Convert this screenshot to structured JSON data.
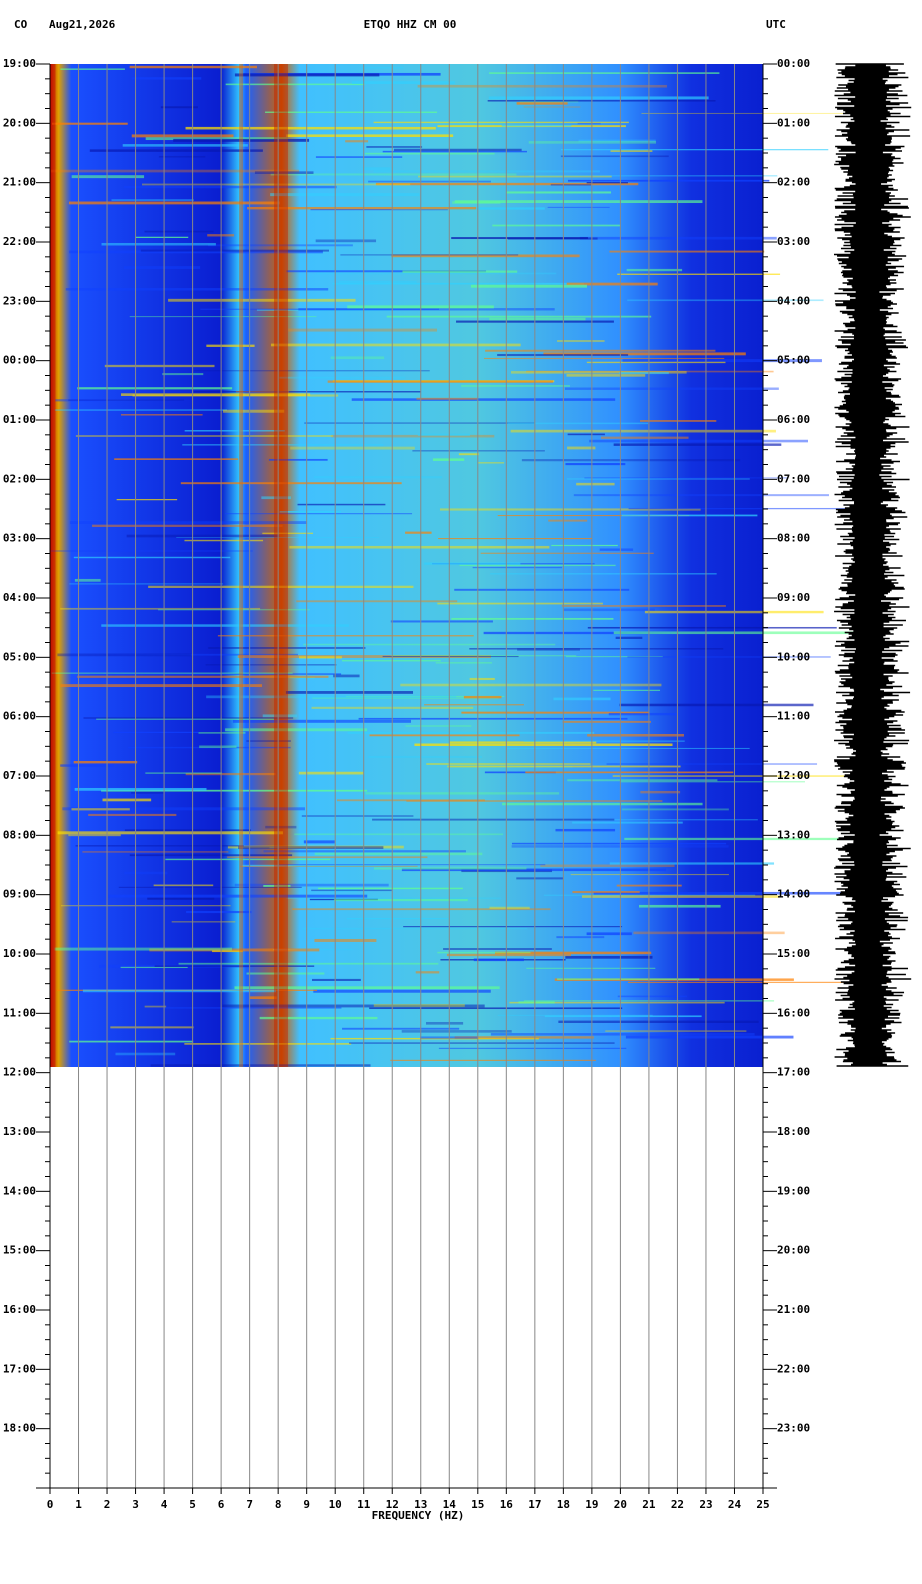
{
  "chart_data": {
    "type": "spectrogram",
    "header": {
      "network": "CO",
      "date": "Aug21,2026",
      "station": "ETQO HHZ CM 00",
      "timezone": "UTC"
    },
    "xlabel": "FREQUENCY (HZ)",
    "xlim": [
      0,
      25
    ],
    "xticks": [
      0,
      1,
      2,
      3,
      4,
      5,
      6,
      7,
      8,
      9,
      10,
      11,
      12,
      13,
      14,
      15,
      16,
      17,
      18,
      19,
      20,
      21,
      22,
      23,
      24,
      25
    ],
    "left_time_labels": [
      "19:00",
      "20:00",
      "21:00",
      "22:00",
      "23:00",
      "00:00",
      "01:00",
      "02:00",
      "03:00",
      "04:00",
      "05:00",
      "06:00",
      "07:00",
      "08:00",
      "09:00",
      "10:00",
      "11:00",
      "12:00",
      "13:00",
      "14:00",
      "15:00",
      "16:00",
      "17:00",
      "18:00"
    ],
    "right_time_labels": [
      "00:00",
      "01:00",
      "02:00",
      "03:00",
      "04:00",
      "05:00",
      "06:00",
      "07:00",
      "08:00",
      "09:00",
      "10:00",
      "11:00",
      "12:00",
      "13:00",
      "14:00",
      "15:00",
      "16:00",
      "17:00",
      "18:00",
      "19:00",
      "20:00",
      "21:00",
      "22:00",
      "23:00"
    ],
    "grid": true
  }
}
